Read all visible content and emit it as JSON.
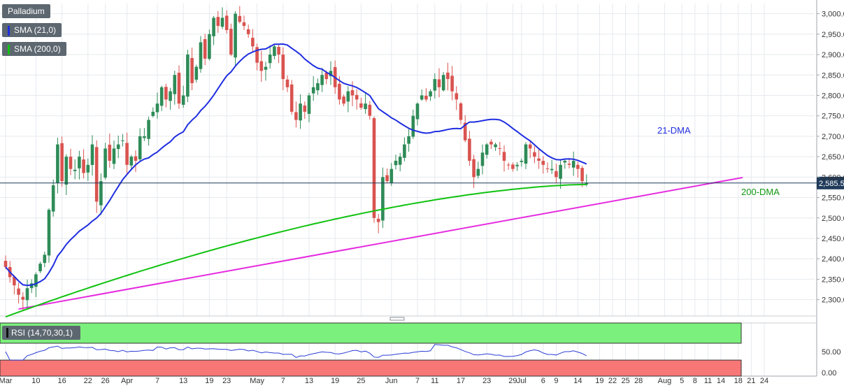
{
  "legend": {
    "symbol": "Palladium",
    "sma21": "SMA (21,0)",
    "sma200": "SMA (200,0)",
    "rsi": "RSI (14,70,30,1)"
  },
  "colors": {
    "up": "#2e8b57",
    "down": "#d9534f",
    "sma21": "#1f2ee0",
    "sma200": "#11c211",
    "trendline": "#e52be0",
    "rsi_line": "#2b3fd6",
    "rsi_overbought": "#7cf07c",
    "rsi_oversold": "#f77777",
    "price_line": "#1f3a5a"
  },
  "chart_data": {
    "type": "candlestick",
    "title": "Palladium",
    "last_price": "2,585.52",
    "y_ticks": [
      "3,000.00",
      "2,950.00",
      "2,900.00",
      "2,850.00",
      "2,800.00",
      "2,750.00",
      "2,700.00",
      "2,650.00",
      "2,600.00",
      "2,550.00",
      "2,500.00",
      "2,450.00",
      "2,400.00",
      "2,350.00",
      "2,300.00"
    ],
    "y_tick_values": [
      3000,
      2950,
      2900,
      2850,
      2800,
      2750,
      2700,
      2650,
      2600,
      2550,
      2500,
      2450,
      2400,
      2350,
      2300
    ],
    "ylim": [
      2260,
      3025
    ],
    "x_ticks": [
      {
        "label": "Mar",
        "i": 0
      },
      {
        "label": "10",
        "i": 7
      },
      {
        "label": "16",
        "i": 13
      },
      {
        "label": "22",
        "i": 19
      },
      {
        "label": "26",
        "i": 23
      },
      {
        "label": "Apr",
        "i": 28
      },
      {
        "label": "7",
        "i": 35
      },
      {
        "label": "13",
        "i": 41
      },
      {
        "label": "19",
        "i": 47
      },
      {
        "label": "23",
        "i": 51
      },
      {
        "label": "May",
        "i": 58
      },
      {
        "label": "7",
        "i": 64
      },
      {
        "label": "13",
        "i": 70
      },
      {
        "label": "19",
        "i": 76
      },
      {
        "label": "25",
        "i": 82
      },
      {
        "label": "Jun",
        "i": 89
      },
      {
        "label": "7",
        "i": 95
      },
      {
        "label": "11",
        "i": 99
      },
      {
        "label": "17",
        "i": 105
      },
      {
        "label": "23",
        "i": 111
      },
      {
        "label": "29",
        "i": 117
      },
      {
        "label": "Jul",
        "i": 119
      },
      {
        "label": "6",
        "i": 124
      },
      {
        "label": "9",
        "i": 127
      },
      {
        "label": "14",
        "i": 132
      },
      {
        "label": "19",
        "i": 137
      },
      {
        "label": "22",
        "i": 140
      },
      {
        "label": "25",
        "i": 143
      },
      {
        "label": "28",
        "i": 146
      },
      {
        "label": "Aug",
        "i": 152
      },
      {
        "label": "5",
        "i": 156
      },
      {
        "label": "8",
        "i": 159
      },
      {
        "label": "11",
        "i": 162
      },
      {
        "label": "14",
        "i": 165
      },
      {
        "label": "18",
        "i": 169
      },
      {
        "label": "21",
        "i": 172
      },
      {
        "label": "24",
        "i": 175
      }
    ],
    "closes": [
      2380,
      2355,
      2335,
      2312,
      2300,
      2328,
      2340,
      2362,
      2388,
      2410,
      2520,
      2580,
      2680,
      2590,
      2650,
      2620,
      2618,
      2650,
      2610,
      2630,
      2680,
      2540,
      2590,
      2670,
      2640,
      2670,
      2680,
      2690,
      2630,
      2650,
      2640,
      2700,
      2700,
      2740,
      2760,
      2780,
      2820,
      2790,
      2810,
      2850,
      2780,
      2800,
      2900,
      2830,
      2870,
      2930,
      2890,
      2950,
      2990,
      2970,
      2990,
      2960,
      2900,
      3000,
      2980,
      2970,
      2950,
      2920,
      2880,
      2860,
      2870,
      2900,
      2920,
      2900,
      2840,
      2820,
      2760,
      2740,
      2780,
      2760,
      2800,
      2820,
      2830,
      2850,
      2840,
      2860,
      2820,
      2790,
      2780,
      2810,
      2800,
      2790,
      2770,
      2780,
      2750,
      2500,
      2490,
      2600,
      2590,
      2620,
      2640,
      2650,
      2680,
      2700,
      2750,
      2780,
      2800,
      2790,
      2810,
      2840,
      2820,
      2850,
      2840,
      2810,
      2790,
      2740,
      2690,
      2640,
      2600,
      2620,
      2660,
      2680,
      2680,
      2680,
      2670,
      2640,
      2630,
      2620,
      2630,
      2640,
      2680,
      2670,
      2650,
      2640,
      2630,
      2620,
      2620,
      2600,
      2630,
      2640,
      2630,
      2640,
      2620,
      2590,
      2585
    ],
    "rsi_value_last": 45,
    "rsi_ticks": [
      "50.00",
      "0.00"
    ],
    "rsi_ylim": [
      -8,
      118
    ],
    "rsi_levels": [
      70,
      30
    ],
    "annotations": {
      "dma21": "21-DMA",
      "dma200": "200-DMA"
    },
    "trendline": {
      "from": {
        "i": 3,
        "y": 2277
      },
      "to": {
        "i": 166,
        "y": 2587
      }
    }
  }
}
